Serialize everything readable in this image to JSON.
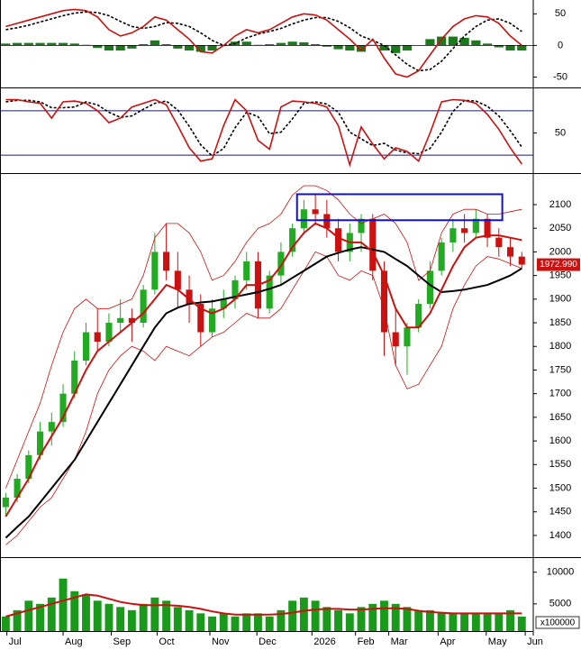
{
  "chart_data": [
    {
      "type": "line",
      "x": [
        0,
        1,
        2,
        3,
        4,
        5,
        6,
        7,
        8,
        9,
        10,
        11,
        12,
        13,
        14,
        15,
        16,
        17,
        18,
        19,
        20,
        21,
        22,
        23,
        24,
        25,
        26,
        27,
        28,
        29,
        30,
        31,
        32,
        33,
        34,
        35,
        36,
        37,
        38,
        39,
        40,
        41,
        42,
        43,
        44,
        45
      ],
      "xlim": [
        -0.5,
        46
      ],
      "ylim": [
        -65,
        69
      ],
      "yticks": [
        -50,
        0,
        50
      ],
      "series": [
        {
          "kind": "bar",
          "color": "#1a7a1a",
          "values": [
            3,
            4,
            4,
            4,
            4,
            4,
            3,
            1,
            -4,
            -8,
            -8,
            -5,
            2,
            8,
            2,
            -5,
            -8,
            -10,
            -8,
            0,
            6,
            6,
            1,
            2,
            4,
            6,
            5,
            2,
            -2,
            -6,
            -8,
            -10,
            1,
            -8,
            -12,
            -8,
            0,
            10,
            14,
            14,
            12,
            8,
            3,
            -3,
            -8,
            -8
          ]
        },
        {
          "color": "#000000",
          "style": "dashed",
          "values": [
            25,
            28,
            32,
            37,
            42,
            47,
            51,
            53,
            52,
            47,
            38,
            30,
            27,
            30,
            36,
            35,
            30,
            20,
            8,
            0,
            3,
            12,
            18,
            22,
            27,
            34,
            40,
            44,
            44,
            38,
            28,
            15,
            8,
            0,
            -15,
            -30,
            -40,
            -38,
            -25,
            -5,
            15,
            30,
            40,
            42,
            35,
            22
          ]
        },
        {
          "color": "#cc1111",
          "values": [
            30,
            35,
            40,
            45,
            50,
            55,
            57,
            55,
            45,
            25,
            15,
            20,
            30,
            45,
            40,
            25,
            10,
            -10,
            -12,
            0,
            15,
            25,
            20,
            25,
            35,
            45,
            50,
            48,
            40,
            25,
            10,
            -8,
            10,
            -20,
            -45,
            -50,
            -40,
            -15,
            10,
            30,
            42,
            47,
            45,
            35,
            15,
            0
          ]
        }
      ]
    },
    {
      "type": "line",
      "x": [
        0,
        1,
        2,
        3,
        4,
        5,
        6,
        7,
        8,
        9,
        10,
        11,
        12,
        13,
        14,
        15,
        16,
        17,
        18,
        19,
        20,
        21,
        22,
        23,
        24,
        25,
        26,
        27,
        28,
        29,
        30,
        31,
        32,
        33,
        34,
        35,
        36,
        37,
        38,
        39,
        40,
        41,
        42,
        43,
        44,
        45
      ],
      "xlim": [
        -0.5,
        46
      ],
      "ylim": [
        -3,
        109
      ],
      "yticks": [
        50
      ],
      "levels": [
        20,
        80
      ],
      "level_color": "#1a1a6e",
      "series": [
        {
          "color": "#000000",
          "style": "dashed",
          "values": [
            92,
            94,
            94,
            92,
            84,
            84,
            85,
            92,
            88,
            78,
            71,
            73,
            82,
            90,
            93,
            81,
            59,
            34,
            19,
            29,
            57,
            78,
            72,
            49,
            51,
            69,
            90,
            92,
            89,
            78,
            51,
            42,
            33,
            36,
            27,
            23,
            22,
            29,
            51,
            79,
            94,
            93,
            86,
            73,
            53,
            31
          ]
        },
        {
          "color": "#cc1111",
          "values": [
            95,
            95,
            92,
            90,
            70,
            92,
            93,
            90,
            80,
            64,
            70,
            85,
            90,
            95,
            88,
            60,
            30,
            12,
            15,
            60,
            95,
            80,
            40,
            28,
            85,
            93,
            92,
            90,
            85,
            60,
            7,
            58,
            35,
            15,
            30,
            25,
            12,
            50,
            92,
            95,
            94,
            90,
            75,
            55,
            30,
            8
          ]
        }
      ]
    },
    {
      "type": "candlestick",
      "x": [
        0,
        1,
        2,
        3,
        4,
        5,
        6,
        7,
        8,
        9,
        10,
        11,
        12,
        13,
        14,
        15,
        16,
        17,
        18,
        19,
        20,
        21,
        22,
        23,
        24,
        25,
        26,
        27,
        28,
        29,
        30,
        31,
        32,
        33,
        34,
        35,
        36,
        37,
        38,
        39,
        40,
        41,
        42,
        43,
        44,
        45
      ],
      "xlim": [
        -0.5,
        46
      ],
      "ylim": [
        1356,
        2161
      ],
      "yticks": [
        1400,
        1450,
        1500,
        1550,
        1600,
        1650,
        1700,
        1750,
        1800,
        1850,
        1900,
        1950,
        2000,
        2050,
        2100
      ],
      "up_color": "#22aa22",
      "down_color": "#cc1111",
      "open": [
        1460,
        1480,
        1520,
        1570,
        1620,
        1640,
        1700,
        1770,
        1830,
        1810,
        1850,
        1860,
        1850,
        1920,
        2000,
        1960,
        1920,
        1890,
        1830,
        1880,
        1900,
        1940,
        1980,
        1880,
        1950,
        2000,
        2050,
        2090,
        2080,
        2050,
        2000,
        2040,
        2070,
        1960,
        1830,
        1800,
        1840,
        1890,
        1960,
        2020,
        2050,
        2040,
        2070,
        2030,
        2010,
        1990
      ],
      "high": [
        1490,
        1530,
        1580,
        1640,
        1660,
        1720,
        1790,
        1850,
        1880,
        1870,
        1900,
        1880,
        1930,
        2040,
        2060,
        2000,
        1950,
        1910,
        1900,
        1920,
        1950,
        2000,
        2000,
        1960,
        2020,
        2060,
        2110,
        2120,
        2110,
        2070,
        2060,
        2080,
        2080,
        1980,
        1880,
        1850,
        1900,
        1980,
        2030,
        2070,
        2080,
        2090,
        2080,
        2050,
        2030,
        2000
      ],
      "low": [
        1440,
        1470,
        1510,
        1560,
        1590,
        1630,
        1690,
        1760,
        1790,
        1800,
        1830,
        1810,
        1840,
        1910,
        1940,
        1880,
        1850,
        1800,
        1820,
        1860,
        1880,
        1920,
        1860,
        1870,
        1930,
        1990,
        2040,
        2060,
        2030,
        1980,
        1980,
        2000,
        1940,
        1780,
        1760,
        1740,
        1830,
        1880,
        1950,
        2000,
        2020,
        2030,
        2010,
        1990,
        1970,
        1965
      ],
      "close": [
        1480,
        1520,
        1570,
        1620,
        1640,
        1700,
        1770,
        1830,
        1810,
        1850,
        1860,
        1850,
        1920,
        2000,
        1960,
        1920,
        1890,
        1830,
        1880,
        1900,
        1940,
        1980,
        1880,
        1950,
        2000,
        2050,
        2090,
        2080,
        2050,
        2000,
        2040,
        2070,
        1960,
        1830,
        1800,
        1840,
        1890,
        1960,
        2020,
        2050,
        2040,
        2070,
        2030,
        2010,
        1990,
        1973
      ],
      "series": [
        {
          "color": "#cc1111",
          "width": 0.8,
          "values": [
            1500,
            1560,
            1620,
            1680,
            1760,
            1830,
            1880,
            1900,
            1880,
            1880,
            1890,
            1900,
            1950,
            2030,
            2060,
            2060,
            2040,
            2000,
            1940,
            1950,
            1980,
            2020,
            2050,
            2060,
            2080,
            2120,
            2140,
            2140,
            2130,
            2110,
            2080,
            2060,
            2070,
            2080,
            2060,
            2020,
            1940,
            1960,
            2040,
            2080,
            2090,
            2090,
            2080,
            2080,
            2085,
            2090
          ]
        },
        {
          "color": "#cc1111",
          "width": 0.8,
          "values": [
            1380,
            1400,
            1430,
            1460,
            1480,
            1520,
            1560,
            1620,
            1700,
            1750,
            1780,
            1800,
            1790,
            1770,
            1800,
            1790,
            1780,
            1800,
            1820,
            1830,
            1850,
            1870,
            1860,
            1860,
            1880,
            1920,
            1960,
            2000,
            1990,
            1950,
            1940,
            1960,
            1950,
            1880,
            1760,
            1710,
            1720,
            1760,
            1800,
            1880,
            1930,
            1970,
            1990,
            1985,
            1975,
            1965
          ]
        },
        {
          "color": "#000000",
          "width": 2,
          "values": [
            1395,
            1418,
            1440,
            1470,
            1500,
            1530,
            1560,
            1600,
            1640,
            1680,
            1720,
            1760,
            1800,
            1840,
            1870,
            1882,
            1890,
            1893,
            1895,
            1900,
            1905,
            1910,
            1915,
            1922,
            1930,
            1945,
            1960,
            1975,
            1990,
            1998,
            2005,
            2010,
            2005,
            2000,
            1985,
            1970,
            1950,
            1930,
            1915,
            1917,
            1920,
            1925,
            1930,
            1940,
            1950,
            1965
          ]
        },
        {
          "color": "#cc1111",
          "width": 2,
          "values": [
            1440,
            1480,
            1520,
            1570,
            1610,
            1650,
            1700,
            1750,
            1790,
            1810,
            1830,
            1850,
            1870,
            1900,
            1930,
            1920,
            1900,
            1880,
            1870,
            1880,
            1900,
            1930,
            1930,
            1940,
            1970,
            2010,
            2040,
            2060,
            2050,
            2030,
            2020,
            2020,
            2000,
            1950,
            1880,
            1840,
            1840,
            1870,
            1920,
            1970,
            2010,
            2030,
            2035,
            2035,
            2030,
            2025
          ]
        }
      ],
      "box": {
        "x": [
          25.4,
          43.3
        ],
        "y": [
          2067,
          2122
        ],
        "color": "#1111cc"
      },
      "last_price": {
        "value": 1972.99,
        "label": "1972.990",
        "color": "#cc1111"
      }
    },
    {
      "type": "bar",
      "x": [
        0,
        1,
        2,
        3,
        4,
        5,
        6,
        7,
        8,
        9,
        10,
        11,
        12,
        13,
        14,
        15,
        16,
        17,
        18,
        19,
        20,
        21,
        22,
        23,
        24,
        25,
        26,
        27,
        28,
        29,
        30,
        31,
        32,
        33,
        34,
        35,
        36,
        37,
        38,
        39,
        40,
        41,
        42,
        43,
        44,
        45
      ],
      "xlim": [
        -0.5,
        46
      ],
      "ylim": [
        700,
        12100
      ],
      "yticks": [
        5000,
        10000
      ],
      "color": "#1a9a1a",
      "unit_label": "x100000",
      "values": [
        3000,
        4000,
        5500,
        5000,
        6000,
        9000,
        7000,
        6500,
        5500,
        5000,
        4500,
        4000,
        5000,
        6000,
        5500,
        4500,
        4000,
        3500,
        3000,
        3500,
        3000,
        3500,
        3500,
        3000,
        4000,
        5500,
        6000,
        5500,
        4500,
        4000,
        3500,
        4500,
        5000,
        5500,
        5000,
        4500,
        4000,
        4000,
        3500,
        3500,
        3500,
        3500,
        3500,
        3500,
        4000,
        3000
      ],
      "series": [
        {
          "color": "#cc1111",
          "width": 2,
          "values": [
            3000,
            3500,
            4000,
            4500,
            5000,
            5500,
            6000,
            6500,
            6300,
            5800,
            5300,
            5000,
            4800,
            4800,
            4800,
            4700,
            4500,
            4200,
            3800,
            3500,
            3300,
            3300,
            3300,
            3300,
            3400,
            3600,
            3900,
            4100,
            4200,
            4200,
            4100,
            4100,
            4200,
            4300,
            4300,
            4200,
            3900,
            3700,
            3600,
            3500,
            3500,
            3500,
            3500,
            3500,
            3500,
            3500
          ]
        }
      ],
      "xticks": [
        {
          "value": 0.1,
          "label": "Jul"
        },
        {
          "value": 5.0,
          "label": "Aug"
        },
        {
          "value": 9.2,
          "label": "Sep"
        },
        {
          "value": 13.2,
          "label": "Oct"
        },
        {
          "value": 17.8,
          "label": "Nov"
        },
        {
          "value": 21.9,
          "label": "Dec"
        },
        {
          "value": 26.7,
          "label": "2026"
        },
        {
          "value": 30.5,
          "label": "Feb"
        },
        {
          "value": 33.4,
          "label": "Mar"
        },
        {
          "value": 37.7,
          "label": "Apr"
        },
        {
          "value": 41.9,
          "label": "May"
        },
        {
          "value": 45.3,
          "label": "Jun"
        }
      ]
    }
  ]
}
